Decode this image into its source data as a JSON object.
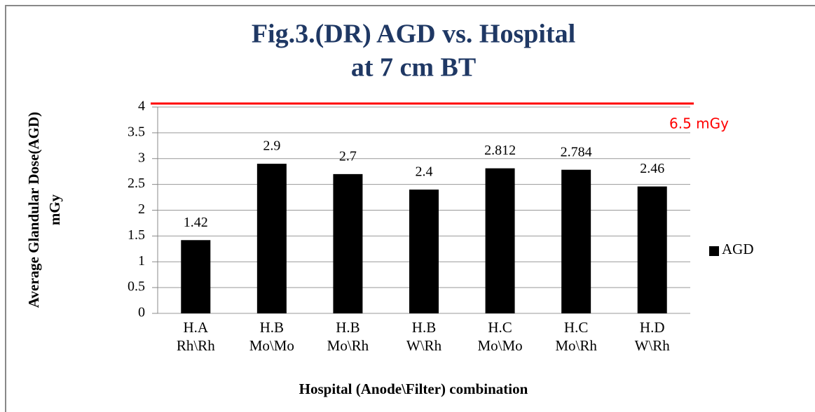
{
  "chart_data": {
    "type": "bar",
    "title": [
      "Fig.3.(DR) AGD vs. Hospital",
      "at 7 cm BT"
    ],
    "y_label": [
      "Average Glandular Dose(AGD)",
      "mGy"
    ],
    "x_label": "Hospital (Anode\\Filter) combination",
    "categories": [
      [
        "H.A",
        "Rh\\Rh"
      ],
      [
        "H.B",
        "Mo\\Mo"
      ],
      [
        "H.B",
        "Mo\\Rh"
      ],
      [
        "H.B",
        "W\\Rh"
      ],
      [
        "H.C",
        "Mo\\Mo"
      ],
      [
        "H.C",
        "Mo\\Rh"
      ],
      [
        "H.D",
        "W\\Rh"
      ]
    ],
    "series": [
      {
        "name": "AGD",
        "color": "#000000",
        "values": [
          1.42,
          2.9,
          2.7,
          2.4,
          2.812,
          2.784,
          2.46
        ]
      }
    ],
    "ylim": [
      0,
      4
    ],
    "yticks": [
      0,
      0.5,
      1,
      1.5,
      2,
      2.5,
      3,
      3.5,
      4
    ],
    "grid": true,
    "legend": "right",
    "reference_line": {
      "label": "6.5 mGy",
      "color": "#ff0000"
    }
  }
}
